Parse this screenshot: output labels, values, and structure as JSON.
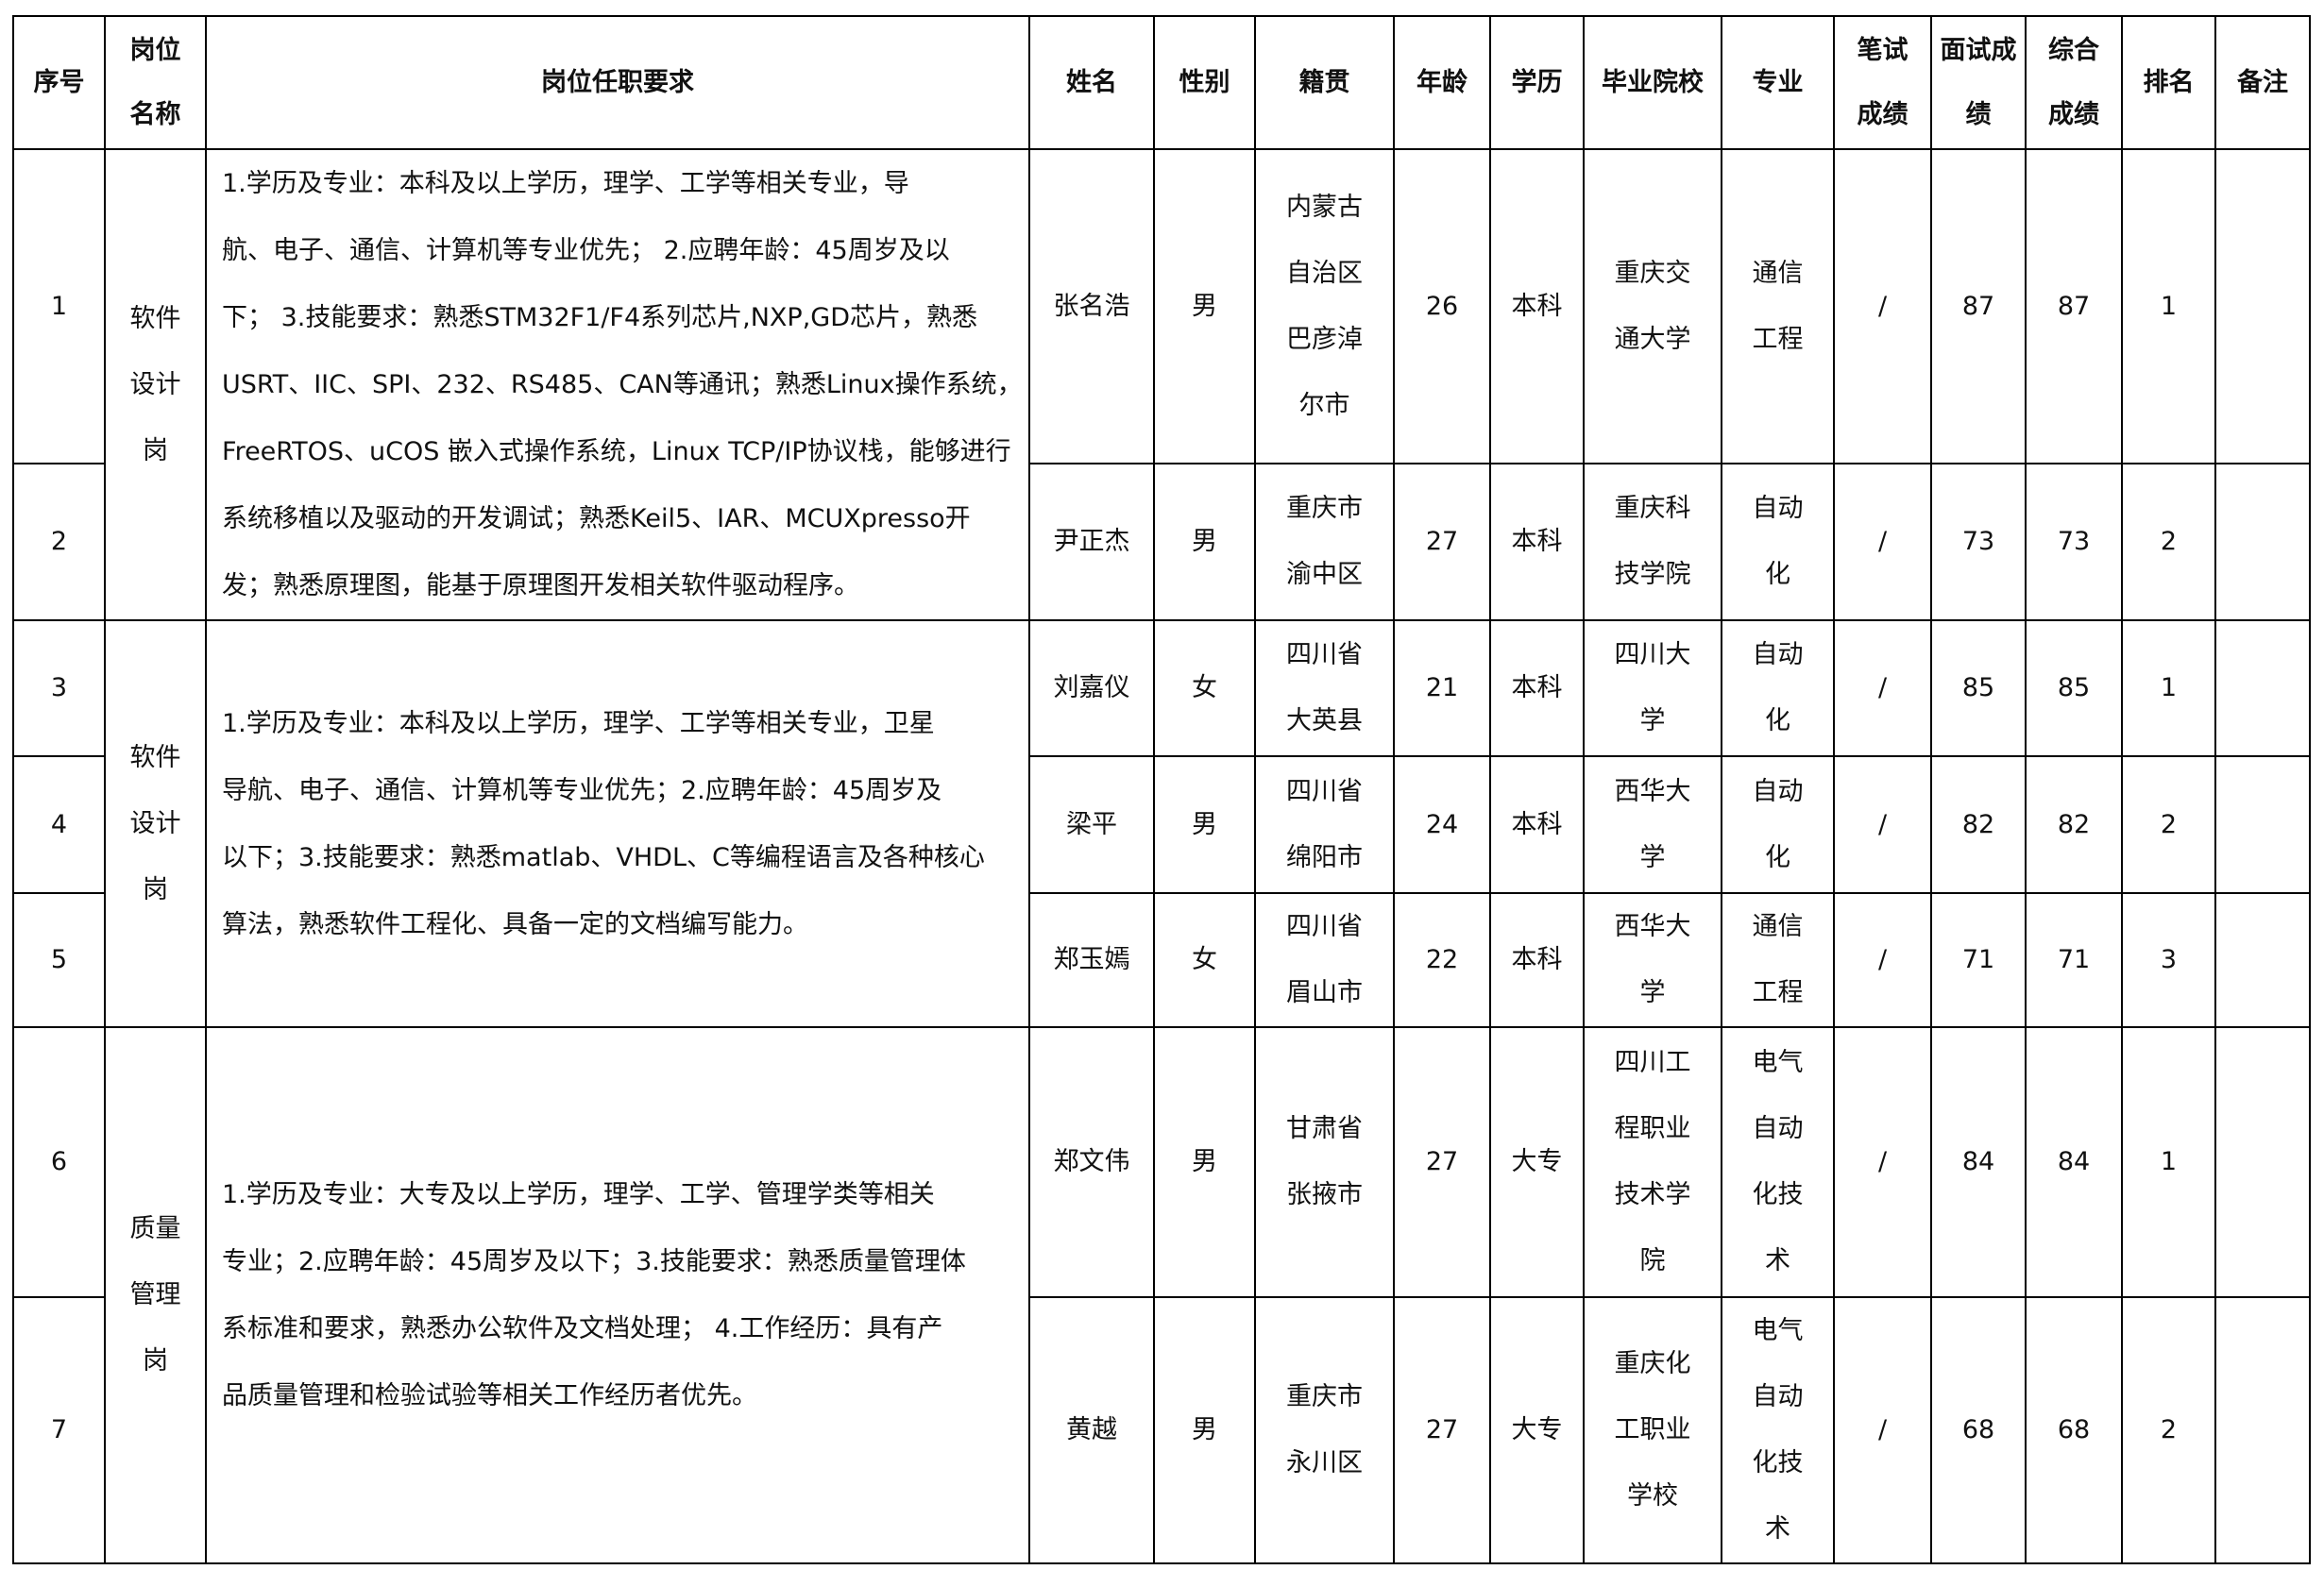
{
  "headers": [
    "序号",
    "岗位名称",
    "岗位任职要求",
    "姓名",
    "性别",
    "籍贯",
    "年龄",
    "学历",
    "毕业院校",
    "专业",
    "笔试成绩",
    "面试成绩",
    "综合成绩",
    "排名",
    "备注"
  ],
  "groups": [
    {
      "position": "软件设计岗",
      "requirement_lines": [
        "1.学历及专业：本科及以上学历，理学、工学等相关专业，导",
        "航、电子、通信、计算机等专业优先；  2.应聘年龄：45周岁及以",
        "下；  3.技能要求：熟悉STM32F1/F4系列芯片,NXP,GD芯片，熟悉",
        "USRT、IIC、SPI、232、RS485、CAN等通讯；熟悉Linux操作系统，",
        "FreeRTOS、uCOS 嵌入式操作系统，Linux TCP/IP协议栈，能够进行",
        "系统移植以及驱动的开发调试；熟悉Keil5、IAR、MCUXpresso开",
        "发；熟悉原理图，能基于原理图开发相关软件驱动程序。"
      ]
    },
    {
      "position": "软件设计岗",
      "requirement_lines": [
        "1.学历及专业：本科及以上学历，理学、工学等相关专业，卫星",
        "导航、电子、通信、计算机等专业优先；2.应聘年龄：45周岁及",
        "以下；3.技能要求：熟悉matlab、VHDL、C等编程语言及各种核心",
        "算法，熟悉软件工程化、具备一定的文档编写能力。"
      ]
    },
    {
      "position": "质量管理岗",
      "requirement_lines": [
        "1.学历及专业：大专及以上学历，理学、工学、管理学类等相关",
        "专业；2.应聘年龄：45周岁及以下；3.技能要求：熟悉质量管理体",
        "系标准和要求，熟悉办公软件及文档处理；  4.工作经历：具有产",
        "品质量管理和检验试验等相关工作经历者优先。"
      ]
    }
  ],
  "rows": [
    {
      "no": "1",
      "group": 0,
      "name": "张名浩",
      "gender": "男",
      "origin": "内蒙古自治区巴彦淖尔市",
      "age": "26",
      "edu": "本科",
      "school": "重庆交通大学",
      "major": "通信工程",
      "written": "/",
      "interview": "87",
      "total": "87",
      "rank": "1",
      "note": ""
    },
    {
      "no": "2",
      "group": 0,
      "name": "尹正杰",
      "gender": "男",
      "origin": "重庆市渝中区",
      "age": "27",
      "edu": "本科",
      "school": "重庆科技学院",
      "major": "自动化",
      "written": "/",
      "interview": "73",
      "total": "73",
      "rank": "2",
      "note": ""
    },
    {
      "no": "3",
      "group": 1,
      "name": "刘嘉仪",
      "gender": "女",
      "origin": "四川省大英县",
      "age": "21",
      "edu": "本科",
      "school": "四川大学",
      "major": "自动化",
      "written": "/",
      "interview": "85",
      "total": "85",
      "rank": "1",
      "note": ""
    },
    {
      "no": "4",
      "group": 1,
      "name": "梁平",
      "gender": "男",
      "origin": "四川省绵阳市",
      "age": "24",
      "edu": "本科",
      "school": "西华大学",
      "major": "自动化",
      "written": "/",
      "interview": "82",
      "total": "82",
      "rank": "2",
      "note": ""
    },
    {
      "no": "5",
      "group": 1,
      "name": "郑玉嫣",
      "gender": "女",
      "origin": "四川省眉山市",
      "age": "22",
      "edu": "本科",
      "school": "西华大学",
      "major": "通信工程",
      "written": "/",
      "interview": "71",
      "total": "71",
      "rank": "3",
      "note": ""
    },
    {
      "no": "6",
      "group": 2,
      "name": "郑文伟",
      "gender": "男",
      "origin": "甘肃省张掖市",
      "age": "27",
      "edu": "大专",
      "school": "四川工程职业技术学院",
      "major": "电气自动化技术",
      "written": "/",
      "interview": "84",
      "total": "84",
      "rank": "1",
      "note": ""
    },
    {
      "no": "7",
      "group": 2,
      "name": "黄越",
      "gender": "男",
      "origin": "重庆市永川区",
      "age": "27",
      "edu": "大专",
      "school": "重庆化工职业学校",
      "major": "电气自动化技术",
      "written": "/",
      "interview": "68",
      "total": "68",
      "rank": "2",
      "note": ""
    }
  ]
}
